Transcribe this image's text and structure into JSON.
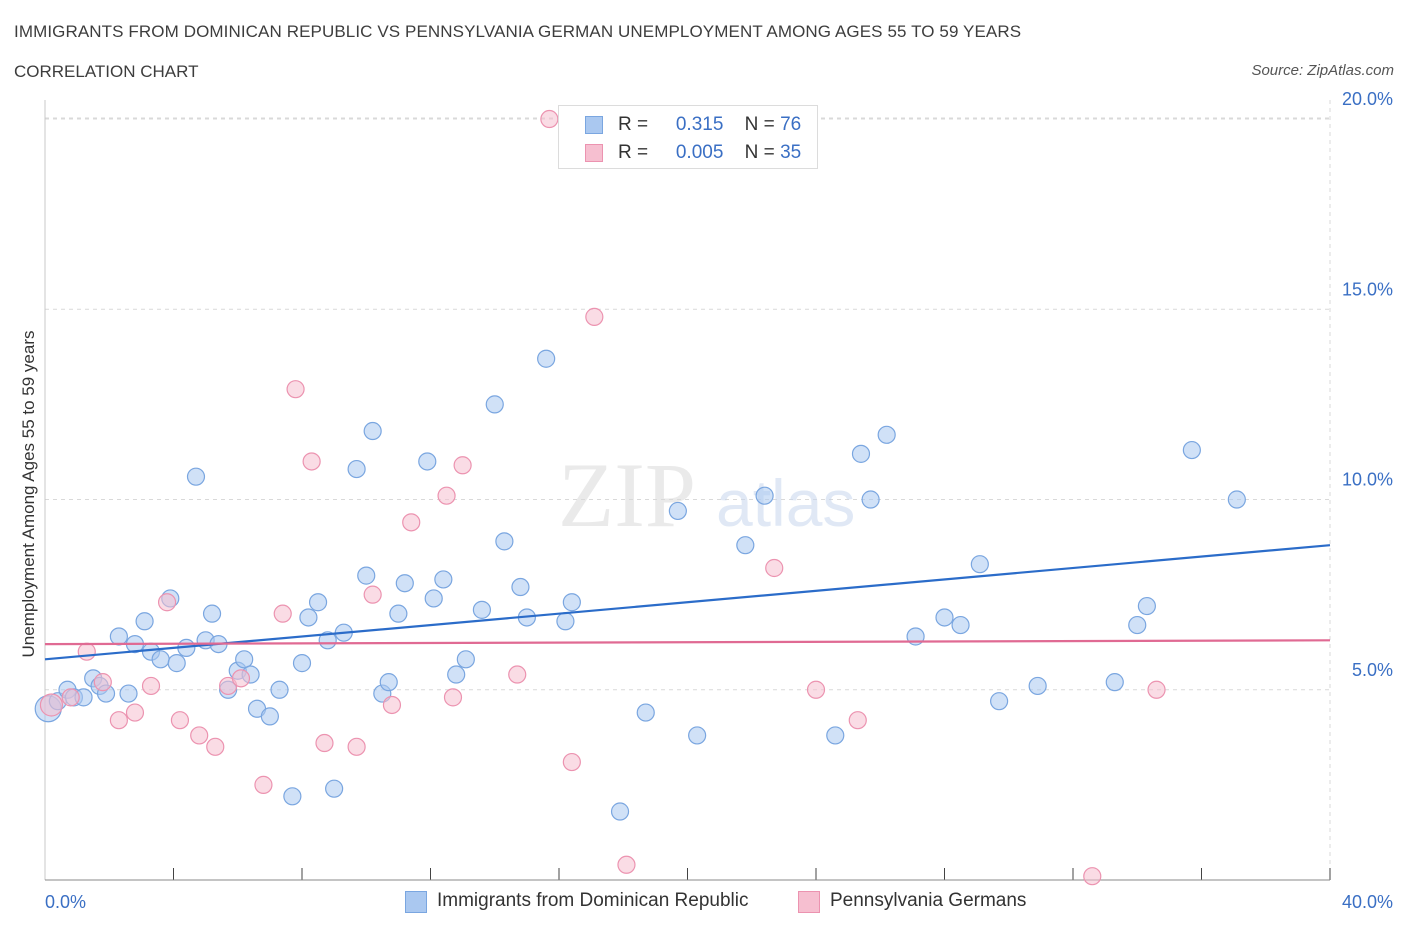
{
  "header": {
    "title": "IMMIGRANTS FROM DOMINICAN REPUBLIC VS PENNSYLVANIA GERMAN UNEMPLOYMENT AMONG AGES 55 TO 59 YEARS",
    "subtitle": "CORRELATION CHART",
    "source": "Source: ZipAtlas.com"
  },
  "watermark": {
    "zip": "ZIP",
    "atlas": "atlas"
  },
  "legend": {
    "series1": {
      "r_label": "R =",
      "r_value": "0.315",
      "n_label": "N =",
      "n_value": "76"
    },
    "series2": {
      "r_label": "R =",
      "r_value": "0.005",
      "n_label": "N =",
      "n_value": "35"
    }
  },
  "colors": {
    "blue_fill": "#aac8f0",
    "blue_stroke": "#7aa6e0",
    "blue_line": "#2b6cc9",
    "pink_fill": "#f6bfd0",
    "pink_stroke": "#ec93b0",
    "pink_line": "#e06a93",
    "tick_label": "#3a6fc4",
    "grid": "#d9d9d9"
  },
  "chart_data": {
    "type": "scatter",
    "title": "IMMIGRANTS FROM DOMINICAN REPUBLIC VS PENNSYLVANIA GERMAN UNEMPLOYMENT AMONG AGES 55 TO 59 YEARS",
    "xlabel": "",
    "ylabel": "Unemployment Among Ages 55 to 59 years",
    "xlim": [
      0,
      40
    ],
    "ylim": [
      0,
      20.5
    ],
    "x_tick_labels": [
      "0.0%",
      "40.0%"
    ],
    "y_ticks": [
      5,
      10,
      15,
      20
    ],
    "y_tick_labels": [
      "5.0%",
      "10.0%",
      "15.0%",
      "20.0%"
    ],
    "grid": true,
    "legend_placement": "top-center",
    "series": [
      {
        "name": "Immigrants from Dominican Republic",
        "color": "#aac8f0",
        "trend": {
          "x": [
            0,
            40
          ],
          "y": [
            5.8,
            8.8
          ]
        },
        "points": [
          {
            "x": 0.1,
            "y": 4.5
          },
          {
            "x": 0.4,
            "y": 4.7
          },
          {
            "x": 0.7,
            "y": 5.0
          },
          {
            "x": 0.9,
            "y": 4.8
          },
          {
            "x": 1.2,
            "y": 4.8
          },
          {
            "x": 1.5,
            "y": 5.3
          },
          {
            "x": 1.7,
            "y": 5.1
          },
          {
            "x": 1.9,
            "y": 4.9
          },
          {
            "x": 2.3,
            "y": 6.4
          },
          {
            "x": 2.6,
            "y": 4.9
          },
          {
            "x": 2.8,
            "y": 6.2
          },
          {
            "x": 3.1,
            "y": 6.8
          },
          {
            "x": 3.3,
            "y": 6.0
          },
          {
            "x": 3.6,
            "y": 5.8
          },
          {
            "x": 3.9,
            "y": 7.4
          },
          {
            "x": 4.1,
            "y": 5.7
          },
          {
            "x": 4.4,
            "y": 6.1
          },
          {
            "x": 4.7,
            "y": 10.6
          },
          {
            "x": 5.0,
            "y": 6.3
          },
          {
            "x": 5.2,
            "y": 7.0
          },
          {
            "x": 5.4,
            "y": 6.2
          },
          {
            "x": 5.7,
            "y": 5.0
          },
          {
            "x": 6.0,
            "y": 5.5
          },
          {
            "x": 6.2,
            "y": 5.8
          },
          {
            "x": 6.4,
            "y": 5.4
          },
          {
            "x": 6.6,
            "y": 4.5
          },
          {
            "x": 7.0,
            "y": 4.3
          },
          {
            "x": 7.3,
            "y": 5.0
          },
          {
            "x": 7.7,
            "y": 2.2
          },
          {
            "x": 8.0,
            "y": 5.7
          },
          {
            "x": 8.2,
            "y": 6.9
          },
          {
            "x": 8.5,
            "y": 7.3
          },
          {
            "x": 8.8,
            "y": 6.3
          },
          {
            "x": 9.0,
            "y": 2.4
          },
          {
            "x": 9.3,
            "y": 6.5
          },
          {
            "x": 9.7,
            "y": 10.8
          },
          {
            "x": 10.0,
            "y": 8.0
          },
          {
            "x": 10.2,
            "y": 11.8
          },
          {
            "x": 10.5,
            "y": 4.9
          },
          {
            "x": 10.7,
            "y": 5.2
          },
          {
            "x": 11.0,
            "y": 7.0
          },
          {
            "x": 11.2,
            "y": 7.8
          },
          {
            "x": 11.9,
            "y": 11.0
          },
          {
            "x": 12.1,
            "y": 7.4
          },
          {
            "x": 12.4,
            "y": 7.9
          },
          {
            "x": 12.8,
            "y": 5.4
          },
          {
            "x": 13.1,
            "y": 5.8
          },
          {
            "x": 13.6,
            "y": 7.1
          },
          {
            "x": 14.0,
            "y": 12.5
          },
          {
            "x": 14.3,
            "y": 8.9
          },
          {
            "x": 14.8,
            "y": 7.7
          },
          {
            "x": 15.0,
            "y": 6.9
          },
          {
            "x": 15.6,
            "y": 13.7
          },
          {
            "x": 16.2,
            "y": 6.8
          },
          {
            "x": 16.4,
            "y": 7.3
          },
          {
            "x": 17.9,
            "y": 1.8
          },
          {
            "x": 18.7,
            "y": 4.4
          },
          {
            "x": 19.7,
            "y": 9.7
          },
          {
            "x": 20.3,
            "y": 3.8
          },
          {
            "x": 21.8,
            "y": 8.8
          },
          {
            "x": 22.4,
            "y": 10.1
          },
          {
            "x": 24.6,
            "y": 3.8
          },
          {
            "x": 25.4,
            "y": 11.2
          },
          {
            "x": 25.7,
            "y": 10.0
          },
          {
            "x": 26.2,
            "y": 11.7
          },
          {
            "x": 27.1,
            "y": 6.4
          },
          {
            "x": 28.0,
            "y": 6.9
          },
          {
            "x": 28.5,
            "y": 6.7
          },
          {
            "x": 29.1,
            "y": 8.3
          },
          {
            "x": 29.7,
            "y": 4.7
          },
          {
            "x": 30.9,
            "y": 5.1
          },
          {
            "x": 33.3,
            "y": 5.2
          },
          {
            "x": 34.0,
            "y": 6.7
          },
          {
            "x": 34.3,
            "y": 7.2
          },
          {
            "x": 35.7,
            "y": 11.3
          },
          {
            "x": 37.1,
            "y": 10.0
          }
        ]
      },
      {
        "name": "Pennsylvania Germans",
        "color": "#f6bfd0",
        "trend": {
          "x": [
            0,
            40
          ],
          "y": [
            6.2,
            6.3
          ]
        },
        "points": [
          {
            "x": 0.2,
            "y": 4.6
          },
          {
            "x": 0.8,
            "y": 4.8
          },
          {
            "x": 1.3,
            "y": 6.0
          },
          {
            "x": 1.8,
            "y": 5.2
          },
          {
            "x": 2.3,
            "y": 4.2
          },
          {
            "x": 2.8,
            "y": 4.4
          },
          {
            "x": 3.3,
            "y": 5.1
          },
          {
            "x": 3.8,
            "y": 7.3
          },
          {
            "x": 4.2,
            "y": 4.2
          },
          {
            "x": 4.8,
            "y": 3.8
          },
          {
            "x": 5.3,
            "y": 3.5
          },
          {
            "x": 5.7,
            "y": 5.1
          },
          {
            "x": 6.1,
            "y": 5.3
          },
          {
            "x": 6.8,
            "y": 2.5
          },
          {
            "x": 7.4,
            "y": 7.0
          },
          {
            "x": 7.8,
            "y": 12.9
          },
          {
            "x": 8.3,
            "y": 11.0
          },
          {
            "x": 8.7,
            "y": 3.6
          },
          {
            "x": 9.7,
            "y": 3.5
          },
          {
            "x": 10.2,
            "y": 7.5
          },
          {
            "x": 10.8,
            "y": 4.6
          },
          {
            "x": 11.4,
            "y": 9.4
          },
          {
            "x": 12.5,
            "y": 10.1
          },
          {
            "x": 12.7,
            "y": 4.8
          },
          {
            "x": 13.0,
            "y": 10.9
          },
          {
            "x": 14.7,
            "y": 5.4
          },
          {
            "x": 15.7,
            "y": 20.0
          },
          {
            "x": 16.4,
            "y": 3.1
          },
          {
            "x": 17.1,
            "y": 14.8
          },
          {
            "x": 18.1,
            "y": 0.4
          },
          {
            "x": 22.7,
            "y": 8.2
          },
          {
            "x": 24.0,
            "y": 5.0
          },
          {
            "x": 25.3,
            "y": 4.2
          },
          {
            "x": 32.6,
            "y": 0.1
          },
          {
            "x": 34.6,
            "y": 5.0
          }
        ]
      }
    ]
  }
}
